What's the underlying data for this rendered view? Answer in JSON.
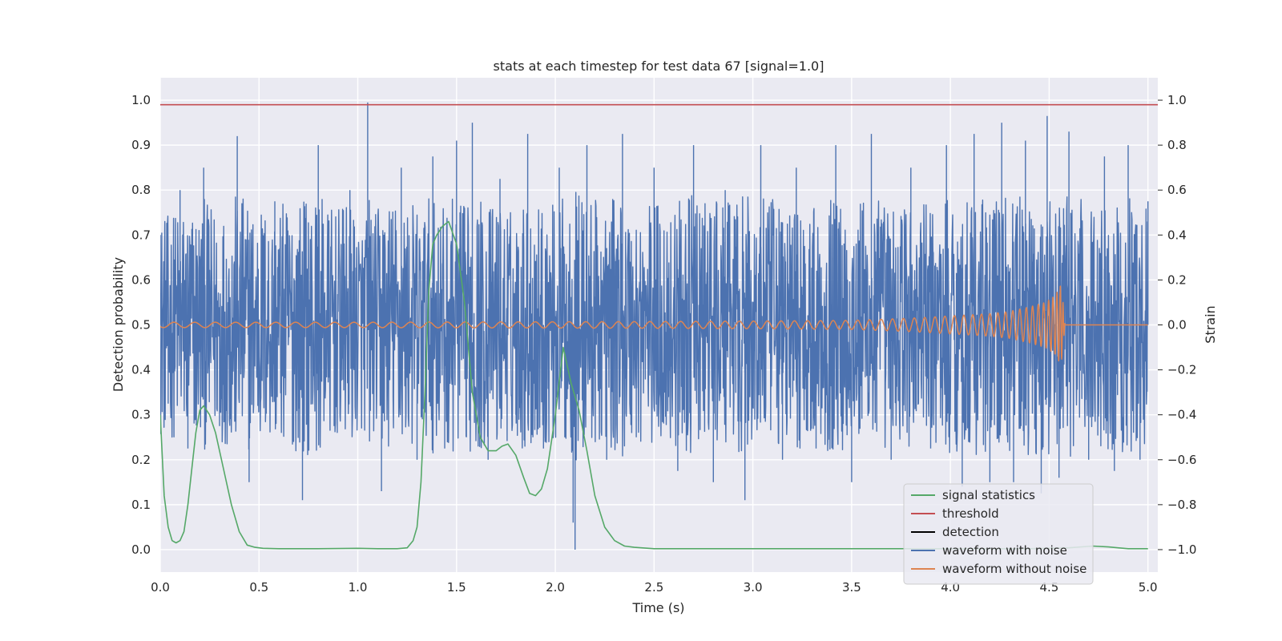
{
  "chart_data": {
    "type": "line",
    "title": "stats at each timestep for test data 67 [signal=1.0]",
    "xlabel": "Time (s)",
    "ylabel": "Detection probability",
    "y2label": "Strain",
    "xlim": [
      0.0,
      5.05
    ],
    "ylim": [
      -0.05,
      1.05
    ],
    "y2lim": [
      -1.1,
      1.1
    ],
    "xticks": [
      "0.0",
      "0.5",
      "1.0",
      "1.5",
      "2.0",
      "2.5",
      "3.0",
      "3.5",
      "4.0",
      "4.5",
      "5.0"
    ],
    "yticks": [
      "0.0",
      "0.1",
      "0.2",
      "0.3",
      "0.4",
      "0.5",
      "0.6",
      "0.7",
      "0.8",
      "0.9",
      "1.0"
    ],
    "y2ticks": [
      "−1.0",
      "−0.8",
      "−0.6",
      "−0.4",
      "−0.2",
      "0.0",
      "0.2",
      "0.4",
      "0.6",
      "0.8",
      "1.0"
    ],
    "grid": true,
    "legend_position": "lower-right",
    "series": [
      {
        "name": "signal statistics",
        "color": "#55a868",
        "axis": "left",
        "x": [
          0.0,
          0.02,
          0.04,
          0.06,
          0.08,
          0.1,
          0.12,
          0.14,
          0.16,
          0.18,
          0.2,
          0.22,
          0.25,
          0.28,
          0.32,
          0.36,
          0.4,
          0.44,
          0.48,
          0.52,
          0.6,
          0.8,
          1.0,
          1.1,
          1.2,
          1.25,
          1.28,
          1.3,
          1.32,
          1.34,
          1.36,
          1.38,
          1.4,
          1.43,
          1.46,
          1.5,
          1.54,
          1.58,
          1.62,
          1.66,
          1.7,
          1.73,
          1.76,
          1.8,
          1.84,
          1.87,
          1.9,
          1.93,
          1.96,
          2.0,
          2.04,
          2.08,
          2.12,
          2.16,
          2.2,
          2.25,
          2.3,
          2.35,
          2.4,
          2.5,
          3.0,
          3.5,
          4.0,
          4.4,
          4.6,
          4.72,
          4.8,
          4.9,
          5.0
        ],
        "y": [
          0.3,
          0.12,
          0.05,
          0.02,
          0.015,
          0.02,
          0.04,
          0.1,
          0.18,
          0.26,
          0.31,
          0.32,
          0.3,
          0.26,
          0.18,
          0.1,
          0.04,
          0.01,
          0.005,
          0.003,
          0.002,
          0.002,
          0.003,
          0.002,
          0.002,
          0.004,
          0.02,
          0.05,
          0.15,
          0.35,
          0.58,
          0.68,
          0.7,
          0.72,
          0.73,
          0.68,
          0.55,
          0.35,
          0.25,
          0.22,
          0.22,
          0.23,
          0.235,
          0.21,
          0.16,
          0.125,
          0.12,
          0.135,
          0.18,
          0.3,
          0.45,
          0.37,
          0.31,
          0.22,
          0.12,
          0.05,
          0.02,
          0.008,
          0.005,
          0.002,
          0.002,
          0.002,
          0.002,
          0.002,
          0.004,
          0.008,
          0.006,
          0.002,
          0.002
        ]
      },
      {
        "name": "threshold",
        "color": "#c44e52",
        "axis": "left",
        "x": [
          -0.05,
          5.1
        ],
        "y": [
          0.99,
          0.99
        ]
      },
      {
        "name": "detection",
        "color": "#000000",
        "axis": "left",
        "x": [],
        "y": []
      },
      {
        "name": "waveform with noise",
        "color": "#4c72b0",
        "axis": "right",
        "x": [
          0.0,
          0.04,
          0.1,
          0.14,
          0.22,
          0.3,
          0.39,
          0.45,
          0.58,
          0.72,
          0.8,
          0.88,
          0.96,
          1.03,
          1.05,
          1.08,
          1.12,
          1.22,
          1.3,
          1.38,
          1.44,
          1.5,
          1.55,
          1.58,
          1.66,
          1.72,
          1.8,
          1.86,
          1.94,
          2.02,
          2.09,
          2.1,
          2.16,
          2.26,
          2.34,
          2.41,
          2.5,
          2.62,
          2.7,
          2.8,
          2.86,
          2.96,
          3.04,
          3.15,
          3.22,
          3.32,
          3.42,
          3.5,
          3.6,
          3.7,
          3.8,
          3.9,
          3.98,
          4.06,
          4.12,
          4.2,
          4.26,
          4.32,
          4.38,
          4.46,
          4.49,
          4.55,
          4.6,
          4.7,
          4.78,
          4.83,
          4.9,
          4.96,
          5.0
        ],
        "y": [
          0.4,
          -0.35,
          0.6,
          -0.55,
          0.7,
          -0.45,
          0.84,
          -0.7,
          0.55,
          -0.78,
          0.8,
          -0.45,
          0.6,
          -0.2,
          0.99,
          -0.3,
          -0.74,
          0.7,
          -0.6,
          0.75,
          -0.55,
          0.82,
          -0.5,
          0.9,
          -0.6,
          0.65,
          -0.4,
          0.85,
          -0.55,
          0.7,
          -0.88,
          -1.0,
          0.8,
          -0.6,
          0.85,
          -0.5,
          0.7,
          -0.65,
          0.8,
          -0.7,
          0.6,
          -0.78,
          0.8,
          -0.6,
          0.7,
          -0.55,
          0.8,
          -0.7,
          0.85,
          -0.6,
          0.7,
          -0.55,
          0.8,
          -0.72,
          0.85,
          -0.7,
          0.9,
          -0.7,
          0.82,
          -0.75,
          0.93,
          -0.68,
          0.86,
          -0.6,
          0.75,
          -0.65,
          0.8,
          -0.6,
          0.55
        ]
      },
      {
        "name": "waveform without noise",
        "color": "#dd8452",
        "axis": "right",
        "x": [
          0.0,
          0.5,
          1.0,
          1.5,
          2.0,
          2.5,
          3.0,
          3.5,
          3.8,
          4.0,
          4.2,
          4.3,
          4.4,
          4.48,
          4.53,
          4.56,
          4.57,
          4.58,
          5.0
        ],
        "y": [
          0.012,
          0.012,
          0.012,
          0.013,
          0.014,
          0.015,
          0.017,
          0.02,
          0.03,
          0.04,
          0.05,
          0.06,
          0.08,
          0.1,
          0.13,
          0.18,
          0.1,
          0.0,
          0.0
        ]
      }
    ]
  }
}
